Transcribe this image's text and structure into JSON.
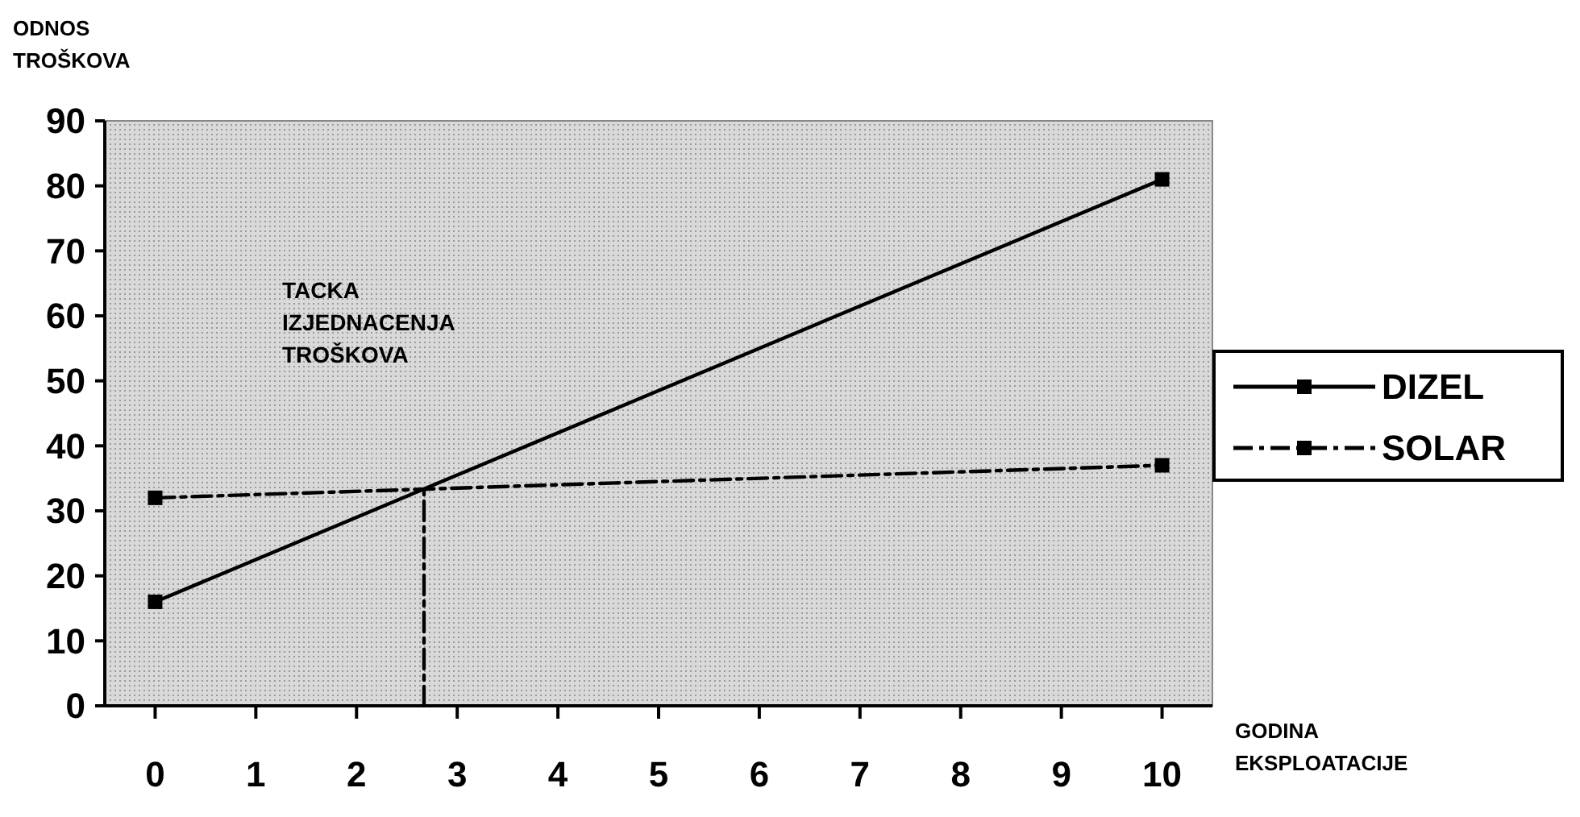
{
  "chart_data": {
    "type": "line",
    "ylabel": "ODNOS\nTROŠKOVA",
    "xlabel": "GODINA\nEKSPLOATACIJE",
    "x": [
      0,
      10
    ],
    "series": [
      {
        "name": "DIZEL",
        "color": "#000000",
        "values": [
          16,
          81
        ],
        "line_style": "solid"
      },
      {
        "name": "SOLAR",
        "color": "#000000",
        "values": [
          32,
          37
        ],
        "line_style": "dashed"
      },
      {
        "color": "#000000",
        "x": [
          2.67,
          2.67
        ],
        "values": [
          0,
          33.3
        ],
        "line_style": "dashed",
        "marker": "none"
      }
    ],
    "xlim": [
      -0.5,
      10.5
    ],
    "xticks": [
      0,
      1,
      2,
      3,
      4,
      5,
      6,
      7,
      8,
      9,
      10
    ],
    "ylim": [
      0,
      90
    ],
    "yticks": [
      0,
      10,
      20,
      30,
      40,
      50,
      60,
      70,
      80,
      90
    ],
    "annotations": [
      "TACKA\nIZJEDNACENJA\nTROŠKOVA"
    ],
    "marker": "square",
    "grid": false,
    "legend": "right"
  }
}
